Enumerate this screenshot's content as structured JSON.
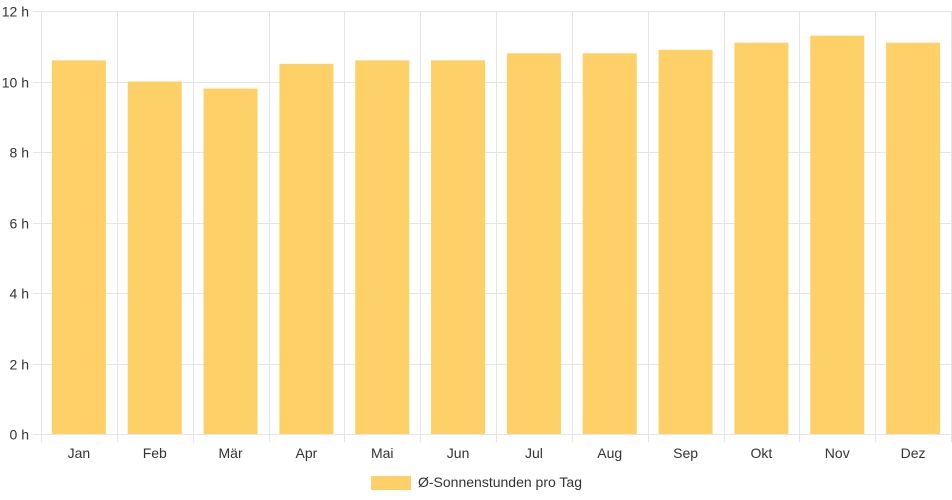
{
  "chart_data": {
    "type": "bar",
    "title": "",
    "xlabel": "",
    "ylabel": "",
    "categories": [
      "Jan",
      "Feb",
      "Mär",
      "Apr",
      "Mai",
      "Jun",
      "Jul",
      "Aug",
      "Sep",
      "Okt",
      "Nov",
      "Dez"
    ],
    "series": [
      {
        "name": "Ø-Sonnenstunden pro Tag",
        "values": [
          10.6,
          10.0,
          9.8,
          10.5,
          10.6,
          10.6,
          10.8,
          10.8,
          10.9,
          11.1,
          11.3,
          11.1
        ],
        "color": "#fdd068"
      }
    ],
    "ylim": [
      0,
      12
    ],
    "y_ticks": [
      0,
      2,
      4,
      6,
      8,
      10,
      12
    ],
    "y_tick_labels": [
      "0 h",
      "2 h",
      "4 h",
      "6 h",
      "8 h",
      "10 h",
      "12 h"
    ],
    "grid": true,
    "legend": "bottom-center"
  }
}
